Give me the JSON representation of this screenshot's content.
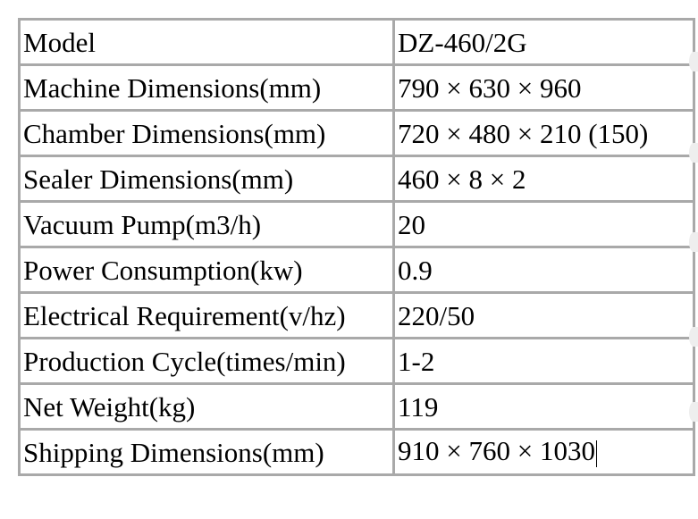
{
  "table": {
    "rows": [
      {
        "label": "Model",
        "value": "DZ-460/2G"
      },
      {
        "label": "Machine Dimensions(mm)",
        "value": "790 × 630 × 960"
      },
      {
        "label": "Chamber Dimensions(mm)",
        "value": "720 × 480 × 210 (150)"
      },
      {
        "label": "Sealer Dimensions(mm)",
        "value": "460 × 8 × 2"
      },
      {
        "label": "Vacuum Pump(m3/h)",
        "value": "20"
      },
      {
        "label": "Power Consumption(kw)",
        "value": "0.9"
      },
      {
        "label": "Electrical Requirement(v/hz)",
        "value": "220/50"
      },
      {
        "label": "Production Cycle(times/min)",
        "value": "1-2"
      },
      {
        "label": "Net Weight(kg)",
        "value": "119"
      },
      {
        "label": "Shipping Dimensions(mm)",
        "value": "910 × 760 × 1030"
      }
    ]
  },
  "colors": {
    "border": "#a9a9a9",
    "text": "#000000",
    "background": "#ffffff"
  }
}
